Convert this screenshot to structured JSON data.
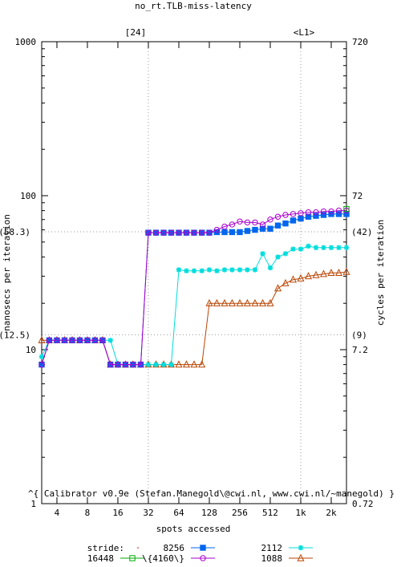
{
  "chart_data": {
    "type": "line",
    "title": "no_rt.TLB-miss-latency",
    "xlabel": "spots accessed",
    "ylabel_left": "nanosecs per iteration",
    "ylabel_right": "cycles per iteration",
    "x_scale": "log2",
    "y_scale": "log10",
    "xlim": [
      2.83,
      2896
    ],
    "ylim_left": [
      1,
      1000
    ],
    "ylim_right": [
      0.72,
      720
    ],
    "x_ticks": [
      {
        "v": 4,
        "label": "4"
      },
      {
        "v": 8,
        "label": "8"
      },
      {
        "v": 16,
        "label": "16"
      },
      {
        "v": 32,
        "label": "32"
      },
      {
        "v": 64,
        "label": "64"
      },
      {
        "v": 128,
        "label": "128"
      },
      {
        "v": 256,
        "label": "256"
      },
      {
        "v": 512,
        "label": "512"
      },
      {
        "v": 1024,
        "label": "1k"
      },
      {
        "v": 2048,
        "label": "2k"
      }
    ],
    "y_ticks_left": [
      {
        "v": 1,
        "label": "1"
      },
      {
        "v": 10,
        "label": "10"
      },
      {
        "v": 100,
        "label": "100"
      },
      {
        "v": 1000,
        "label": "1000"
      }
    ],
    "y_ticks_right": [
      {
        "v": 1,
        "label": "0.72"
      },
      {
        "v": 10,
        "label": "7.2"
      },
      {
        "v": 100,
        "label": "72"
      },
      {
        "v": 1000,
        "label": "720"
      }
    ],
    "top_markers": [
      {
        "x": 32,
        "label": "[24]"
      },
      {
        "x": 1024,
        "label": "<L1>"
      }
    ],
    "ref_lines": [
      {
        "y": 58.3,
        "left_label": "(58.3)",
        "right_label": "(42)"
      },
      {
        "y": 12.5,
        "left_label": "(12.5)",
        "right_label": "(9)"
      }
    ],
    "annotation": "^{ Calibrator v0.9e (Stefan.Manegold\\@cwi.nl, www.cwi.nl/~manegold) }",
    "legend_title": "stride:",
    "legend_order": [
      "s8256",
      "s2112",
      "s16448",
      "s4160",
      "s1088"
    ],
    "series": [
      {
        "id": "s8256",
        "name": "8256",
        "color": "#0066ee",
        "marker": "square-filled",
        "x": [
          2.83,
          3.36,
          4,
          4.76,
          5.66,
          6.73,
          8,
          9.51,
          11.3,
          13.5,
          16,
          19,
          22.6,
          26.9,
          32,
          38.1,
          45.3,
          53.8,
          64,
          76.1,
          90.5,
          108,
          128,
          152,
          181,
          215,
          256,
          304,
          362,
          431,
          512,
          609,
          724,
          861,
          1024,
          1218,
          1448,
          1722,
          2048,
          2435,
          2896
        ],
        "y": [
          8,
          11.5,
          11.5,
          11.5,
          11.5,
          11.5,
          11.5,
          11.5,
          11.5,
          8,
          8,
          8,
          8,
          8,
          57.5,
          57.5,
          57.5,
          57.5,
          57.5,
          57.5,
          57.5,
          57.5,
          57.5,
          58,
          58,
          58,
          58,
          59,
          60,
          61,
          61,
          64,
          66,
          69,
          71,
          73,
          74,
          75,
          76,
          76,
          76
        ]
      },
      {
        "id": "s2112",
        "name": "2112",
        "color": "#00dddd",
        "marker": "asterisk",
        "x": [
          2.83,
          3.36,
          4,
          4.76,
          5.66,
          6.73,
          8,
          9.51,
          11.3,
          13.5,
          16,
          19,
          22.6,
          26.9,
          32,
          38.1,
          45.3,
          53.8,
          64,
          76.1,
          90.5,
          108,
          128,
          152,
          181,
          215,
          256,
          304,
          362,
          431,
          512,
          609,
          724,
          861,
          1024,
          1218,
          1448,
          1722,
          2048,
          2435,
          2896
        ],
        "y": [
          9,
          11.5,
          11.5,
          11.5,
          11.5,
          11.5,
          11.5,
          11.5,
          11.5,
          11.5,
          8,
          8,
          8,
          8,
          8,
          8,
          8,
          8,
          33,
          32.5,
          32.5,
          32.5,
          33,
          32.5,
          33,
          33,
          33,
          33,
          33,
          42,
          34,
          40,
          42,
          45,
          45,
          47,
          46,
          46,
          46,
          46,
          46
        ]
      },
      {
        "id": "s16448",
        "name": "16448",
        "color": "#00aa00",
        "marker": "square-open",
        "x": [
          2896
        ],
        "y": [
          82
        ]
      },
      {
        "id": "s4160",
        "name": "\\{4160\\}",
        "color": "#aa00cc",
        "marker": "circle-open",
        "x": [
          2.83,
          3.36,
          4,
          4.76,
          5.66,
          6.73,
          8,
          9.51,
          11.3,
          13.5,
          16,
          19,
          22.6,
          26.9,
          32,
          38.1,
          45.3,
          53.8,
          64,
          76.1,
          90.5,
          108,
          128,
          152,
          181,
          215,
          256,
          304,
          362,
          431,
          512,
          609,
          724,
          861,
          1024,
          1218,
          1448,
          1722,
          2048,
          2435,
          2896
        ],
        "y": [
          8,
          11.5,
          11.5,
          11.5,
          11.5,
          11.5,
          11.5,
          11.5,
          11.5,
          8,
          8,
          8,
          8,
          8,
          57.5,
          57.5,
          57.5,
          57.5,
          57.5,
          57.5,
          57.5,
          57.5,
          57.5,
          60,
          63,
          65,
          68,
          67,
          67,
          65,
          70,
          73,
          75,
          76,
          77,
          78,
          78,
          79,
          79,
          80,
          80
        ]
      },
      {
        "id": "s1088",
        "name": "1088",
        "color": "#bb4400",
        "marker": "triangle-open",
        "x": [
          2.83,
          3.36,
          4,
          4.76,
          5.66,
          6.73,
          8,
          9.51,
          11.3,
          13.5,
          16,
          19,
          22.6,
          26.9,
          32,
          38.1,
          45.3,
          53.8,
          64,
          76.1,
          90.5,
          108,
          128,
          152,
          181,
          215,
          256,
          304,
          362,
          431,
          512,
          609,
          724,
          861,
          1024,
          1218,
          1448,
          1722,
          2048,
          2435,
          2896
        ],
        "y": [
          11.5,
          11.5,
          11.5,
          11.5,
          11.5,
          11.5,
          11.5,
          11.5,
          11.5,
          8,
          8,
          8,
          8,
          8,
          8,
          8,
          8,
          8,
          8,
          8,
          8,
          8,
          20,
          20,
          20,
          20,
          20,
          20,
          20,
          20,
          20,
          25,
          27,
          28.5,
          29,
          30,
          30.5,
          31,
          31.5,
          31.5,
          32
        ]
      }
    ]
  }
}
